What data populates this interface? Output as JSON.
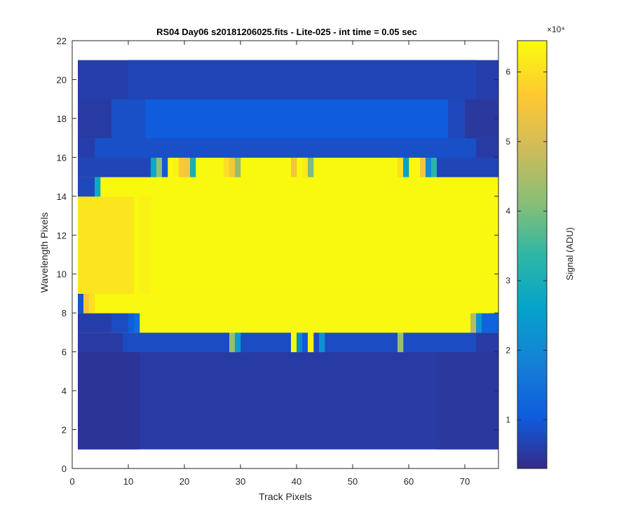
{
  "chart_data": {
    "type": "heatmap",
    "title": "RS04 Day06  s20181206025.fits - Lite-025 - int time = 0.05 sec",
    "xlabel": "Track Pixels",
    "ylabel": "Wavelength Pixels",
    "xlim": [
      0,
      76
    ],
    "ylim": [
      0,
      22
    ],
    "xticks": [
      "0",
      "10",
      "20",
      "30",
      "40",
      "50",
      "60",
      "70"
    ],
    "yticks": [
      "0",
      "2",
      "4",
      "6",
      "8",
      "10",
      "12",
      "14",
      "16",
      "18",
      "20",
      "22"
    ],
    "colormap": "parula",
    "colorbar": {
      "label": "Signal (ADU)",
      "exponent_label": "×10⁴",
      "clim": [
        0.3,
        6.45
      ],
      "ticks": [
        "1",
        "2",
        "3",
        "4",
        "5",
        "6"
      ]
    },
    "rows": [
      {
        "y0": 1,
        "y1": 6,
        "base": 0.55,
        "segments": [
          [
            1,
            12,
            0.45
          ],
          [
            65,
            76,
            0.5
          ]
        ]
      },
      {
        "y0": 6,
        "y1": 7,
        "base": 0.8,
        "segments": [
          [
            1,
            9,
            0.55
          ],
          [
            28,
            29,
            4.3
          ],
          [
            29,
            30,
            2.5
          ],
          [
            39,
            40,
            6.4
          ],
          [
            40,
            41,
            2.0
          ],
          [
            41,
            42,
            1.0
          ],
          [
            42,
            43,
            6.3
          ],
          [
            44,
            45,
            2.2
          ],
          [
            58,
            59,
            4.3
          ],
          [
            72,
            76,
            0.55
          ]
        ]
      },
      {
        "y0": 7,
        "y1": 8,
        "base": 6.4,
        "segments": [
          [
            1,
            7,
            0.6
          ],
          [
            7,
            10,
            0.8
          ],
          [
            10,
            11,
            1.1
          ],
          [
            11,
            12,
            1.4
          ],
          [
            71,
            72,
            4.6
          ],
          [
            72,
            73,
            2.3
          ],
          [
            73,
            76,
            1.2
          ]
        ]
      },
      {
        "y0": 8,
        "y1": 9,
        "base": 6.4,
        "segments": [
          [
            1,
            2,
            0.9
          ],
          [
            2,
            3,
            5.6
          ],
          [
            3,
            4,
            6.0
          ]
        ]
      },
      {
        "y0": 9,
        "y1": 14,
        "base": 6.42,
        "segments": [
          [
            1,
            11,
            6.1
          ],
          [
            12,
            14,
            6.3
          ]
        ]
      },
      {
        "y0": 14,
        "y1": 15,
        "base": 6.42,
        "segments": [
          [
            1,
            4,
            0.75
          ],
          [
            4,
            5,
            2.8
          ]
        ]
      },
      {
        "y0": 15,
        "y1": 16,
        "base": 6.42,
        "segments": [
          [
            1,
            14,
            0.7
          ],
          [
            14,
            15,
            2.8
          ],
          [
            15,
            16,
            4.2
          ],
          [
            16,
            17,
            1.0
          ],
          [
            18,
            19,
            6.3
          ],
          [
            19,
            20,
            5.6
          ],
          [
            20,
            21,
            5.5
          ],
          [
            21,
            22,
            3.0
          ],
          [
            27,
            28,
            6.0
          ],
          [
            28,
            29,
            5.5
          ],
          [
            29,
            30,
            4.2
          ],
          [
            39,
            40,
            5.5
          ],
          [
            41,
            42,
            6.2
          ],
          [
            42,
            43,
            4.0
          ],
          [
            58,
            59,
            6.0
          ],
          [
            59,
            60,
            2.6
          ],
          [
            62,
            63,
            5.5
          ],
          [
            63,
            64,
            2.1
          ],
          [
            64,
            65,
            3.3
          ],
          [
            65,
            76,
            0.7
          ]
        ]
      },
      {
        "y0": 16,
        "y1": 17,
        "base": 0.85,
        "segments": [
          [
            1,
            4,
            0.6
          ],
          [
            72,
            76,
            0.55
          ]
        ]
      },
      {
        "y0": 17,
        "y1": 19,
        "base": 1.05,
        "segments": [
          [
            1,
            7,
            0.55
          ],
          [
            7,
            13,
            0.85
          ],
          [
            67,
            70,
            0.75
          ],
          [
            70,
            76,
            0.5
          ]
        ]
      },
      {
        "y0": 19,
        "y1": 21,
        "base": 0.6,
        "segments": [
          [
            10,
            72,
            0.7
          ]
        ]
      }
    ]
  }
}
